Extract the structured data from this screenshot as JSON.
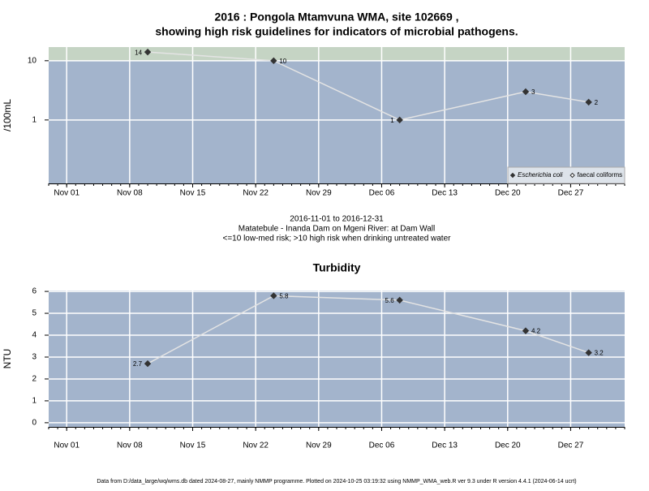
{
  "chart_data": [
    {
      "type": "line",
      "log_scale": true,
      "grid": true,
      "title": [
        "2016 : Pongola Mtamvuna WMA, site 102669 ,",
        "showing high risk guidelines for indicators of microbial pathogens."
      ],
      "ylabel": "/100mL",
      "notes": [
        "2016-11-01 to 2016-12-31",
        "Matatebule - Inanda Dam on Mgeni River: at Dam Wall",
        "<=10 low-med risk; >10 high risk when drinking untreated water"
      ],
      "threshold": 10,
      "threshold_color": "#c5d4c4",
      "background": "#a3b4cc",
      "x": [
        "Nov 10",
        "Nov 24",
        "Dec 08",
        "Dec 22",
        "Dec 29"
      ],
      "xlim": [
        "Oct 30",
        "Jan 02"
      ],
      "xticks": [
        "Nov 01",
        "Nov 08",
        "Nov 15",
        "Nov 22",
        "Nov 29",
        "Dec 06",
        "Dec 13",
        "Dec 20",
        "Dec 27"
      ],
      "ylim": [
        0.085,
        17
      ],
      "yticks": [
        1,
        10
      ],
      "legend": "lower right",
      "series": [
        {
          "name": "Escherichia coli",
          "color": "#333333",
          "values": [
            14,
            10,
            1,
            3,
            2
          ]
        },
        {
          "name": "faecal coliforms",
          "color": "#ffffff",
          "values": [
            null,
            null,
            null,
            null,
            null
          ]
        }
      ]
    },
    {
      "type": "line",
      "log_scale": false,
      "grid": true,
      "title": "Turbidity",
      "ylabel": "NTU",
      "background": "#a3b4cc",
      "x": [
        "Nov 10",
        "Nov 24",
        "Dec 08",
        "Dec 22",
        "Dec 29"
      ],
      "xlim": [
        "Oct 30",
        "Jan 02"
      ],
      "xticks": [
        "Nov 01",
        "Nov 08",
        "Nov 15",
        "Nov 22",
        "Nov 29",
        "Dec 06",
        "Dec 13",
        "Dec 20",
        "Dec 27"
      ],
      "ylim": [
        -0.19,
        6.04
      ],
      "yticks": [
        0,
        1,
        2,
        3,
        4,
        5,
        6
      ],
      "series": [
        {
          "name": "Turbidity",
          "color": "#333333",
          "values": [
            2.7,
            5.8,
            5.6,
            4.2,
            3.2
          ]
        }
      ]
    }
  ],
  "footer": "Data from D:/data_large/wq/wms.db dated 2024-08-27, mainly NMMP programme. Plotted on 2024-10-25 03:19:32 using NMMP_WMA_web.R ver 9.3 under R version 4.4.1 (2024-06-14 ucrt)"
}
